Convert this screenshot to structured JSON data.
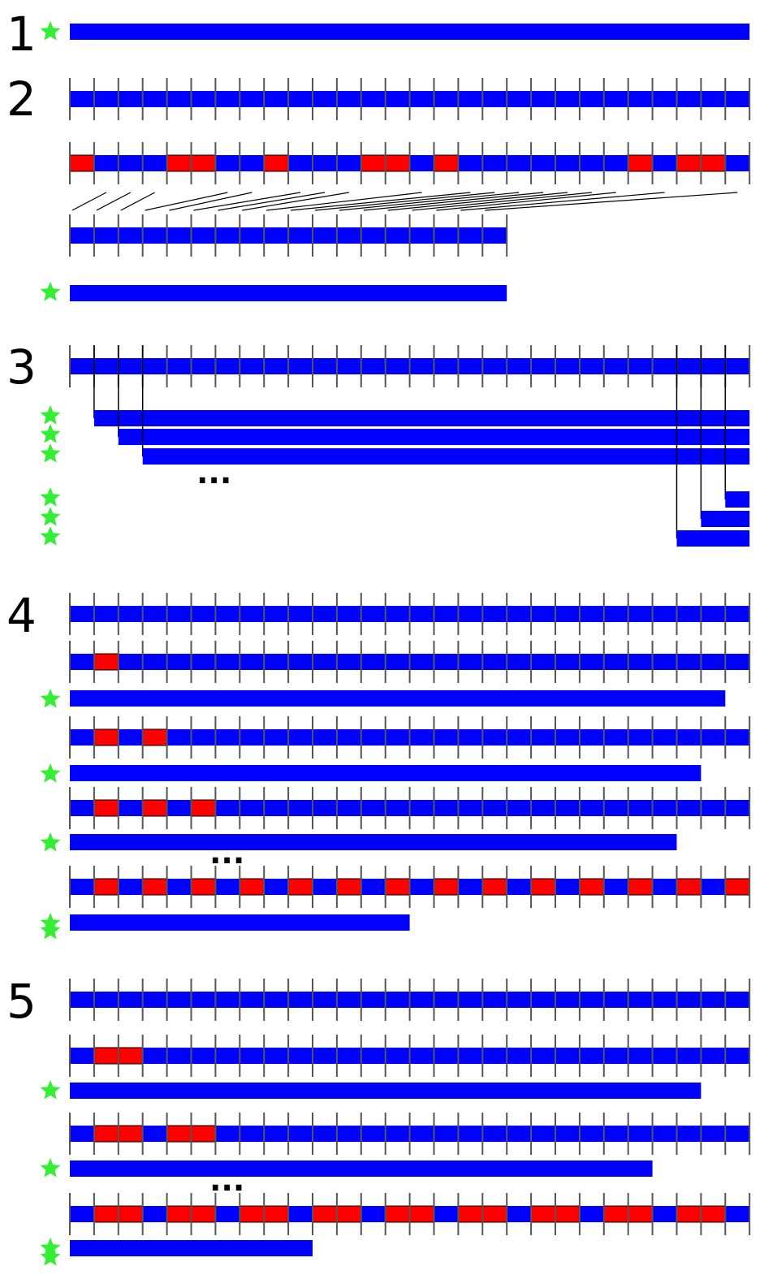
{
  "colors": {
    "bar": "#0000ff",
    "mutated": "#ff0000",
    "star": "#33ee33",
    "tick": "#555555",
    "line": "#000000",
    "background": "#ffffff"
  },
  "panels": [
    {
      "label": "1"
    },
    {
      "label": "2"
    },
    {
      "label": "3"
    },
    {
      "label": "4"
    },
    {
      "label": "5"
    }
  ],
  "ellipsis": "...",
  "segments_total": 28,
  "panel2": {
    "mutated_segments": [
      0,
      4,
      5,
      8,
      12,
      13,
      15,
      23,
      25,
      26
    ],
    "remaining_segments": 18
  },
  "panel3": {
    "prefix_removed": [
      1,
      2,
      3
    ],
    "prefix_kept": [
      1,
      2,
      3
    ]
  },
  "panel4": {
    "steps": [
      {
        "mutated_segments": [
          1
        ],
        "remaining_segments": 27
      },
      {
        "mutated_segments": [
          1,
          3
        ],
        "remaining_segments": 26
      },
      {
        "mutated_segments": [
          1,
          3,
          5
        ],
        "remaining_segments": 25
      },
      {
        "mutated_segments": [
          1,
          3,
          5,
          7,
          9,
          11,
          13,
          15,
          17,
          19,
          21,
          23,
          25,
          27
        ],
        "remaining_segments": 14
      }
    ]
  },
  "panel5": {
    "steps": [
      {
        "mutated_segments": [
          1,
          2
        ],
        "remaining_segments": 26
      },
      {
        "mutated_segments": [
          1,
          2,
          4,
          5
        ],
        "remaining_segments": 24
      },
      {
        "mutated_segments": [
          1,
          2,
          4,
          5,
          7,
          8,
          10,
          11,
          13,
          14,
          16,
          17,
          19,
          20,
          22,
          23,
          25,
          26
        ],
        "remaining_segments": 10
      }
    ]
  }
}
